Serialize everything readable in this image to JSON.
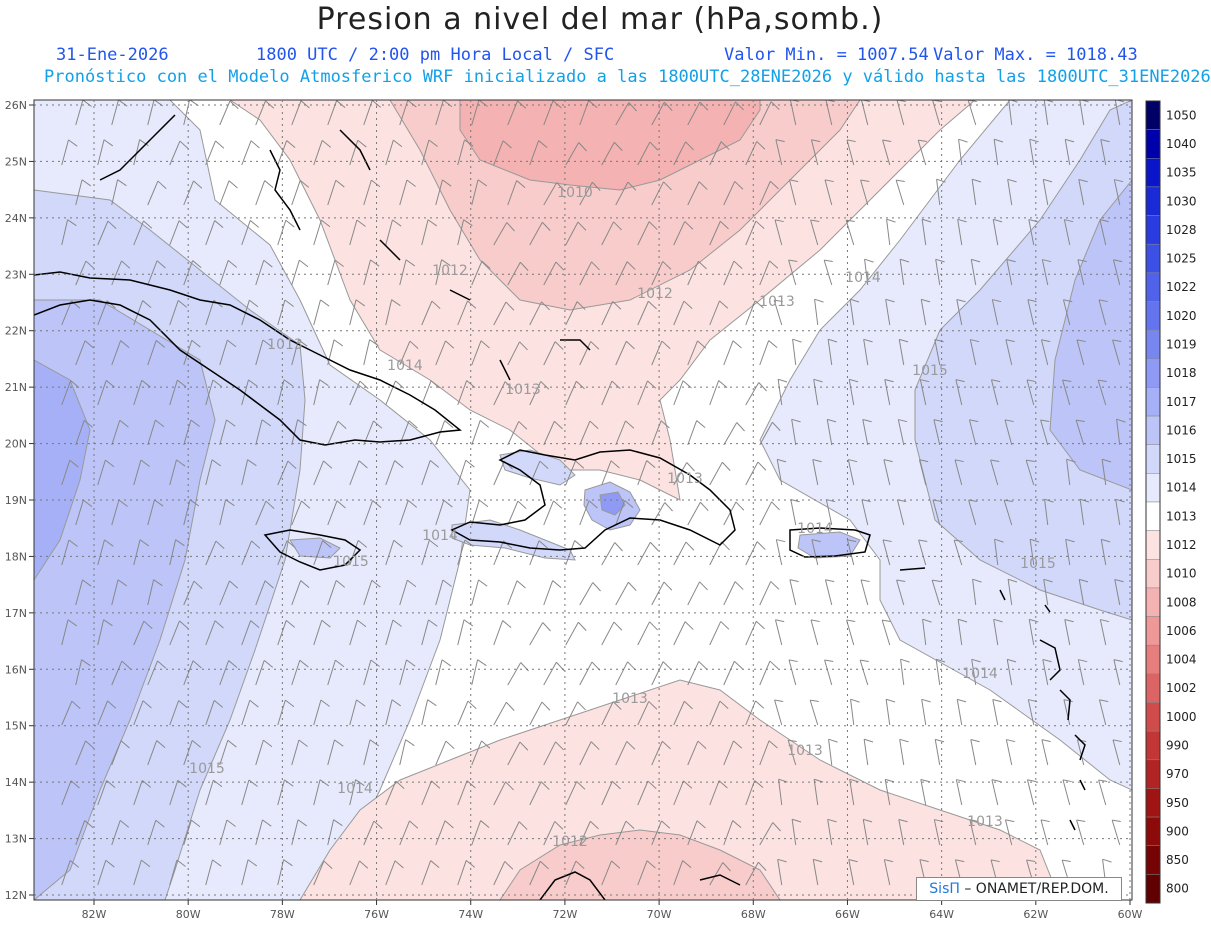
{
  "header": {
    "title": "Presion a nivel del mar (hPa,somb.)",
    "date": "31-Ene-2026",
    "time": "1800 UTC / 2:00 pm Hora Local / SFC",
    "min_label": "Valor Min. = 1007.54",
    "max_label": "Valor Max. = 1018.43",
    "forecast_text": "Pronóstico con el Modelo Atmosferico WRF inicializado a las 1800UTC_28ENE2026 y válido hasta las  1800UTC_31ENE2026"
  },
  "map": {
    "lat_labels": [
      "26N",
      "25N",
      "24N",
      "23N",
      "22N",
      "21N",
      "20N",
      "19N",
      "18N",
      "17N",
      "16N",
      "15N",
      "14N",
      "13N",
      "12N"
    ],
    "lon_labels": [
      "82W",
      "80W",
      "78W",
      "76W",
      "74W",
      "72W",
      "70W",
      "68W",
      "66W",
      "64W",
      "62W",
      "60W"
    ],
    "contour_labels": [
      "1010",
      "1012",
      "1012",
      "1013",
      "1014",
      "1013",
      "1014",
      "1013",
      "1015",
      "1014",
      "1013",
      "1014",
      "1015",
      "1015",
      "1014",
      "1013",
      "1013",
      "1015",
      "1014",
      "1013",
      "1012"
    ]
  },
  "colorbar": {
    "levels": [
      "1050",
      "1040",
      "1035",
      "1030",
      "1028",
      "1025",
      "1022",
      "1020",
      "1019",
      "1018",
      "1017",
      "1016",
      "1015",
      "1014",
      "1013",
      "1012",
      "1010",
      "1008",
      "1006",
      "1004",
      "1002",
      "1000",
      "990",
      "970",
      "950",
      "900",
      "850",
      "800"
    ],
    "colors": [
      "#000066",
      "#0000aa",
      "#0a14c8",
      "#1a2ad6",
      "#2a3ce0",
      "#3c50e6",
      "#5062ea",
      "#6474ee",
      "#7886f0",
      "#8e9af3",
      "#a6b0f6",
      "#bcc4f8",
      "#d2d8fa",
      "#e6eafc",
      "#ffffff",
      "#fde2e2",
      "#f9cccc",
      "#f4b2b2",
      "#ee9898",
      "#e67e7e",
      "#dc6464",
      "#d04c4c",
      "#c23636",
      "#b22424",
      "#a01414",
      "#8c0a0a",
      "#760404",
      "#600000"
    ]
  },
  "credit": {
    "brand": "SisΠ",
    "text": " – ONAMET/REP.DOM."
  }
}
